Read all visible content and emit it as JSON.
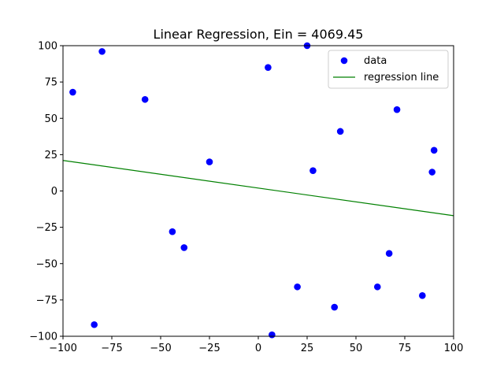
{
  "chart_data": {
    "type": "scatter",
    "title": "Linear Regression, Ein = 4069.45",
    "xlabel": "",
    "ylabel": "",
    "xlim": [
      -100,
      100
    ],
    "ylim": [
      -100,
      100
    ],
    "xticks": [
      -100,
      -75,
      -50,
      -25,
      0,
      25,
      50,
      75,
      100
    ],
    "yticks": [
      -100,
      -75,
      -50,
      -25,
      0,
      25,
      50,
      75,
      100
    ],
    "xtick_labels": [
      "−100",
      "−75",
      "−50",
      "−25",
      "0",
      "25",
      "50",
      "75",
      "100"
    ],
    "ytick_labels": [
      "−100",
      "−75",
      "−50",
      "−25",
      "0",
      "25",
      "50",
      "75",
      "100"
    ],
    "grid": false,
    "legend_position": "top-right",
    "series": [
      {
        "name": "data",
        "type": "scatter",
        "color": "#0000ff",
        "points": [
          {
            "x": -95,
            "y": 68
          },
          {
            "x": -80,
            "y": 96
          },
          {
            "x": -58,
            "y": 63
          },
          {
            "x": -25,
            "y": 20
          },
          {
            "x": -44,
            "y": -28
          },
          {
            "x": -38,
            "y": -39
          },
          {
            "x": -84,
            "y": -92
          },
          {
            "x": 5,
            "y": 85
          },
          {
            "x": 25,
            "y": 100
          },
          {
            "x": 42,
            "y": 41
          },
          {
            "x": 71,
            "y": 56
          },
          {
            "x": 90,
            "y": 28
          },
          {
            "x": 28,
            "y": 14
          },
          {
            "x": 89,
            "y": 13
          },
          {
            "x": 67,
            "y": -43
          },
          {
            "x": 20,
            "y": -66
          },
          {
            "x": 61,
            "y": -66
          },
          {
            "x": 84,
            "y": -72
          },
          {
            "x": 39,
            "y": -80
          },
          {
            "x": 7,
            "y": -99
          }
        ]
      },
      {
        "name": "regression line",
        "type": "line",
        "color": "#008000",
        "points": [
          {
            "x": -100,
            "y": 21
          },
          {
            "x": 100,
            "y": -17
          }
        ]
      }
    ]
  }
}
